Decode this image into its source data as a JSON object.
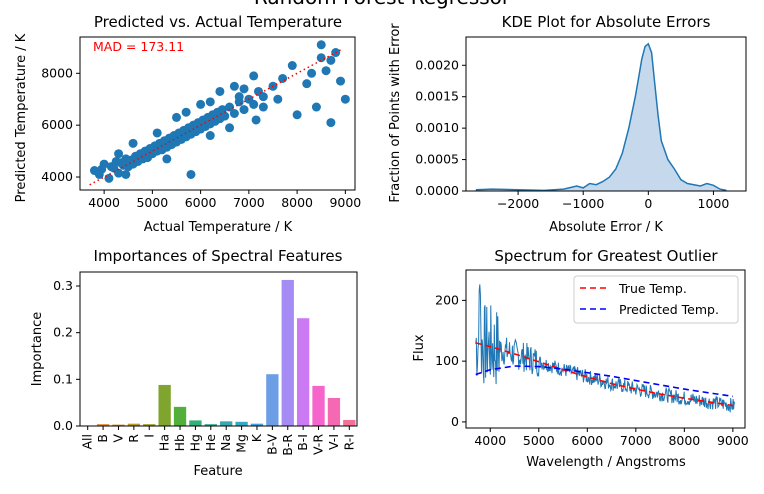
{
  "figure_title": "Random Forest Regressor",
  "chart_data": [
    {
      "type": "scatter",
      "title": "Predicted vs. Actual Temperature",
      "xlabel": "Actual Temperature / K",
      "ylabel": "Predicted Temperature / K",
      "xlim": [
        3500,
        9200
      ],
      "ylim": [
        3500,
        9400
      ],
      "xticks": [
        "4000",
        "5000",
        "6000",
        "7000",
        "8000",
        "9000"
      ],
      "yticks": [
        "4000",
        "6000",
        "8000"
      ],
      "annotation": "MAD = 173.11",
      "annotation_color": "#ff0000",
      "marker_color": "#1f77b4",
      "reference_line": {
        "style": "dotted",
        "color": "#ff0000",
        "x": [
          3700,
          8900
        ],
        "y": [
          3700,
          8900
        ]
      },
      "points": [
        [
          3800,
          4250
        ],
        [
          3950,
          4300
        ],
        [
          4000,
          4500
        ],
        [
          4100,
          3950
        ],
        [
          4150,
          4400
        ],
        [
          4200,
          4350
        ],
        [
          4250,
          4600
        ],
        [
          4300,
          4150
        ],
        [
          4350,
          4550
        ],
        [
          4400,
          4450
        ],
        [
          4450,
          4700
        ],
        [
          4500,
          4400
        ],
        [
          4550,
          4650
        ],
        [
          4600,
          4500
        ],
        [
          4650,
          4800
        ],
        [
          4700,
          4600
        ],
        [
          4750,
          4900
        ],
        [
          4800,
          4700
        ],
        [
          4850,
          5000
        ],
        [
          4900,
          4750
        ],
        [
          4950,
          5100
        ],
        [
          5000,
          4900
        ],
        [
          5050,
          5200
        ],
        [
          5100,
          5000
        ],
        [
          5150,
          5300
        ],
        [
          5200,
          5050
        ],
        [
          5250,
          5400
        ],
        [
          5300,
          5150
        ],
        [
          5350,
          5500
        ],
        [
          5400,
          5250
        ],
        [
          5450,
          5600
        ],
        [
          5500,
          5350
        ],
        [
          5550,
          5700
        ],
        [
          5600,
          5450
        ],
        [
          5650,
          5800
        ],
        [
          5700,
          5550
        ],
        [
          5750,
          5900
        ],
        [
          5800,
          5650
        ],
        [
          5850,
          6000
        ],
        [
          5900,
          5750
        ],
        [
          5950,
          6100
        ],
        [
          6000,
          5850
        ],
        [
          6050,
          6200
        ],
        [
          6100,
          5950
        ],
        [
          6150,
          6300
        ],
        [
          6200,
          6050
        ],
        [
          6250,
          6400
        ],
        [
          6300,
          6150
        ],
        [
          6350,
          6500
        ],
        [
          6400,
          6250
        ],
        [
          6450,
          6600
        ],
        [
          6500,
          6350
        ],
        [
          6600,
          6700
        ],
        [
          6700,
          6450
        ],
        [
          6800,
          6900
        ],
        [
          6900,
          6600
        ],
        [
          7000,
          7000
        ],
        [
          7100,
          6800
        ],
        [
          7200,
          7300
        ],
        [
          7300,
          7100
        ],
        [
          7500,
          7500
        ],
        [
          7600,
          7000
        ],
        [
          7700,
          7800
        ],
        [
          7900,
          8300
        ],
        [
          8000,
          6400
        ],
        [
          8200,
          7600
        ],
        [
          8300,
          8000
        ],
        [
          8400,
          6700
        ],
        [
          8500,
          8600
        ],
        [
          8600,
          8100
        ],
        [
          8700,
          6100
        ],
        [
          8800,
          8800
        ],
        [
          8900,
          7700
        ],
        [
          9000,
          7000
        ],
        [
          8500,
          9100
        ],
        [
          8700,
          8500
        ],
        [
          6800,
          7100
        ],
        [
          7300,
          6700
        ],
        [
          6200,
          5600
        ],
        [
          5800,
          4100
        ],
        [
          4600,
          5300
        ],
        [
          5300,
          4700
        ],
        [
          6700,
          7500
        ],
        [
          6400,
          7300
        ],
        [
          7150,
          6200
        ],
        [
          5500,
          6300
        ],
        [
          4300,
          4900
        ],
        [
          5100,
          5700
        ],
        [
          6000,
          6800
        ],
        [
          6600,
          5900
        ],
        [
          4450,
          4100
        ],
        [
          3900,
          4100
        ],
        [
          6900,
          7400
        ],
        [
          5700,
          6500
        ],
        [
          7100,
          7900
        ],
        [
          6200,
          6900
        ]
      ]
    },
    {
      "type": "area",
      "title": "KDE Plot for Absolute Errors",
      "xlabel": "Absolute Error / K",
      "ylabel": "Fraction of Points with Error",
      "xlim": [
        -2800,
        1500
      ],
      "ylim": [
        0,
        0.00245
      ],
      "xticks": [
        "−2000",
        "−1000",
        "0",
        "1000"
      ],
      "yticks": [
        "0.0000",
        "0.0005",
        "0.0010",
        "0.0015",
        "0.0020"
      ],
      "line_color": "#1f77b4",
      "fill_color": "#c6d9ec",
      "x": [
        -2650,
        -2400,
        -2000,
        -1600,
        -1300,
        -1100,
        -1000,
        -900,
        -800,
        -700,
        -600,
        -500,
        -400,
        -300,
        -200,
        -150,
        -100,
        -50,
        0,
        50,
        100,
        150,
        200,
        300,
        400,
        500,
        600,
        700,
        800,
        900,
        1000,
        1100,
        1200
      ],
      "y": [
        2e-05,
        3e-05,
        2e-05,
        1e-05,
        3e-05,
        8e-05,
        5e-05,
        0.00012,
        0.0001,
        0.00015,
        0.00022,
        0.00035,
        0.0006,
        0.001,
        0.0015,
        0.0018,
        0.0021,
        0.0023,
        0.00234,
        0.0022,
        0.0017,
        0.0012,
        0.0008,
        0.0005,
        0.00035,
        0.00018,
        0.00012,
        0.0001,
        8e-05,
        0.00012,
        9e-05,
        3e-05,
        1e-05
      ]
    },
    {
      "type": "bar",
      "title": "Importances of Spectral Features",
      "xlabel": "Feature",
      "ylabel": "Importance",
      "ylim": [
        0,
        0.33
      ],
      "yticks": [
        "0.0",
        "0.1",
        "0.2",
        "0.3"
      ],
      "categories": [
        "All",
        "B",
        "V",
        "R",
        "I",
        "Ha",
        "Hb",
        "Hg",
        "He",
        "Na",
        "Mg",
        "K",
        "B-V",
        "B-R",
        "B-I",
        "V-R",
        "V-I",
        "R-I"
      ],
      "values": [
        0.001,
        0.004,
        0.003,
        0.005,
        0.004,
        0.088,
        0.041,
        0.012,
        0.004,
        0.01,
        0.009,
        0.005,
        0.111,
        0.313,
        0.231,
        0.086,
        0.06,
        0.013
      ],
      "colors": [
        "#f77189",
        "#e48a32",
        "#d08f2d",
        "#b99a2d",
        "#a0a12e",
        "#7fa52e",
        "#52b03a",
        "#33b07a",
        "#35ad9c",
        "#37aab0",
        "#38a9c5",
        "#3aa5df",
        "#6c9ee6",
        "#a48cf4",
        "#cc79f4",
        "#f565cc",
        "#f469b2",
        "#f46f9a"
      ]
    },
    {
      "type": "line",
      "title": "Spectrum for Greatest Outlier",
      "xlabel": "Wavelength / Angstroms",
      "ylabel": "Flux",
      "xlim": [
        3500,
        9250
      ],
      "ylim": [
        -10,
        250
      ],
      "xticks": [
        "4000",
        "5000",
        "6000",
        "7000",
        "8000",
        "9000"
      ],
      "yticks": [
        "0",
        "100",
        "200"
      ],
      "spectrum_color": "#1f77b4",
      "legend_position": "top-right",
      "series": [
        {
          "name": "True Temp.",
          "color": "#ff0000",
          "style": "dashed",
          "x": [
            3700,
            4000,
            4500,
            5000,
            5500,
            6000,
            6500,
            7000,
            7500,
            8000,
            8500,
            9000
          ],
          "y": [
            130,
            124,
            112,
            99,
            86,
            74,
            63,
            54,
            46,
            39,
            33,
            27
          ]
        },
        {
          "name": "Predicted Temp.",
          "color": "#0000ff",
          "style": "dashed",
          "x": [
            3700,
            4000,
            4500,
            5000,
            5500,
            6000,
            6500,
            7000,
            7500,
            8000,
            8500,
            9000
          ],
          "y": [
            78,
            86,
            92,
            91,
            87,
            81,
            75,
            68,
            61,
            54,
            48,
            42
          ]
        }
      ]
    }
  ]
}
